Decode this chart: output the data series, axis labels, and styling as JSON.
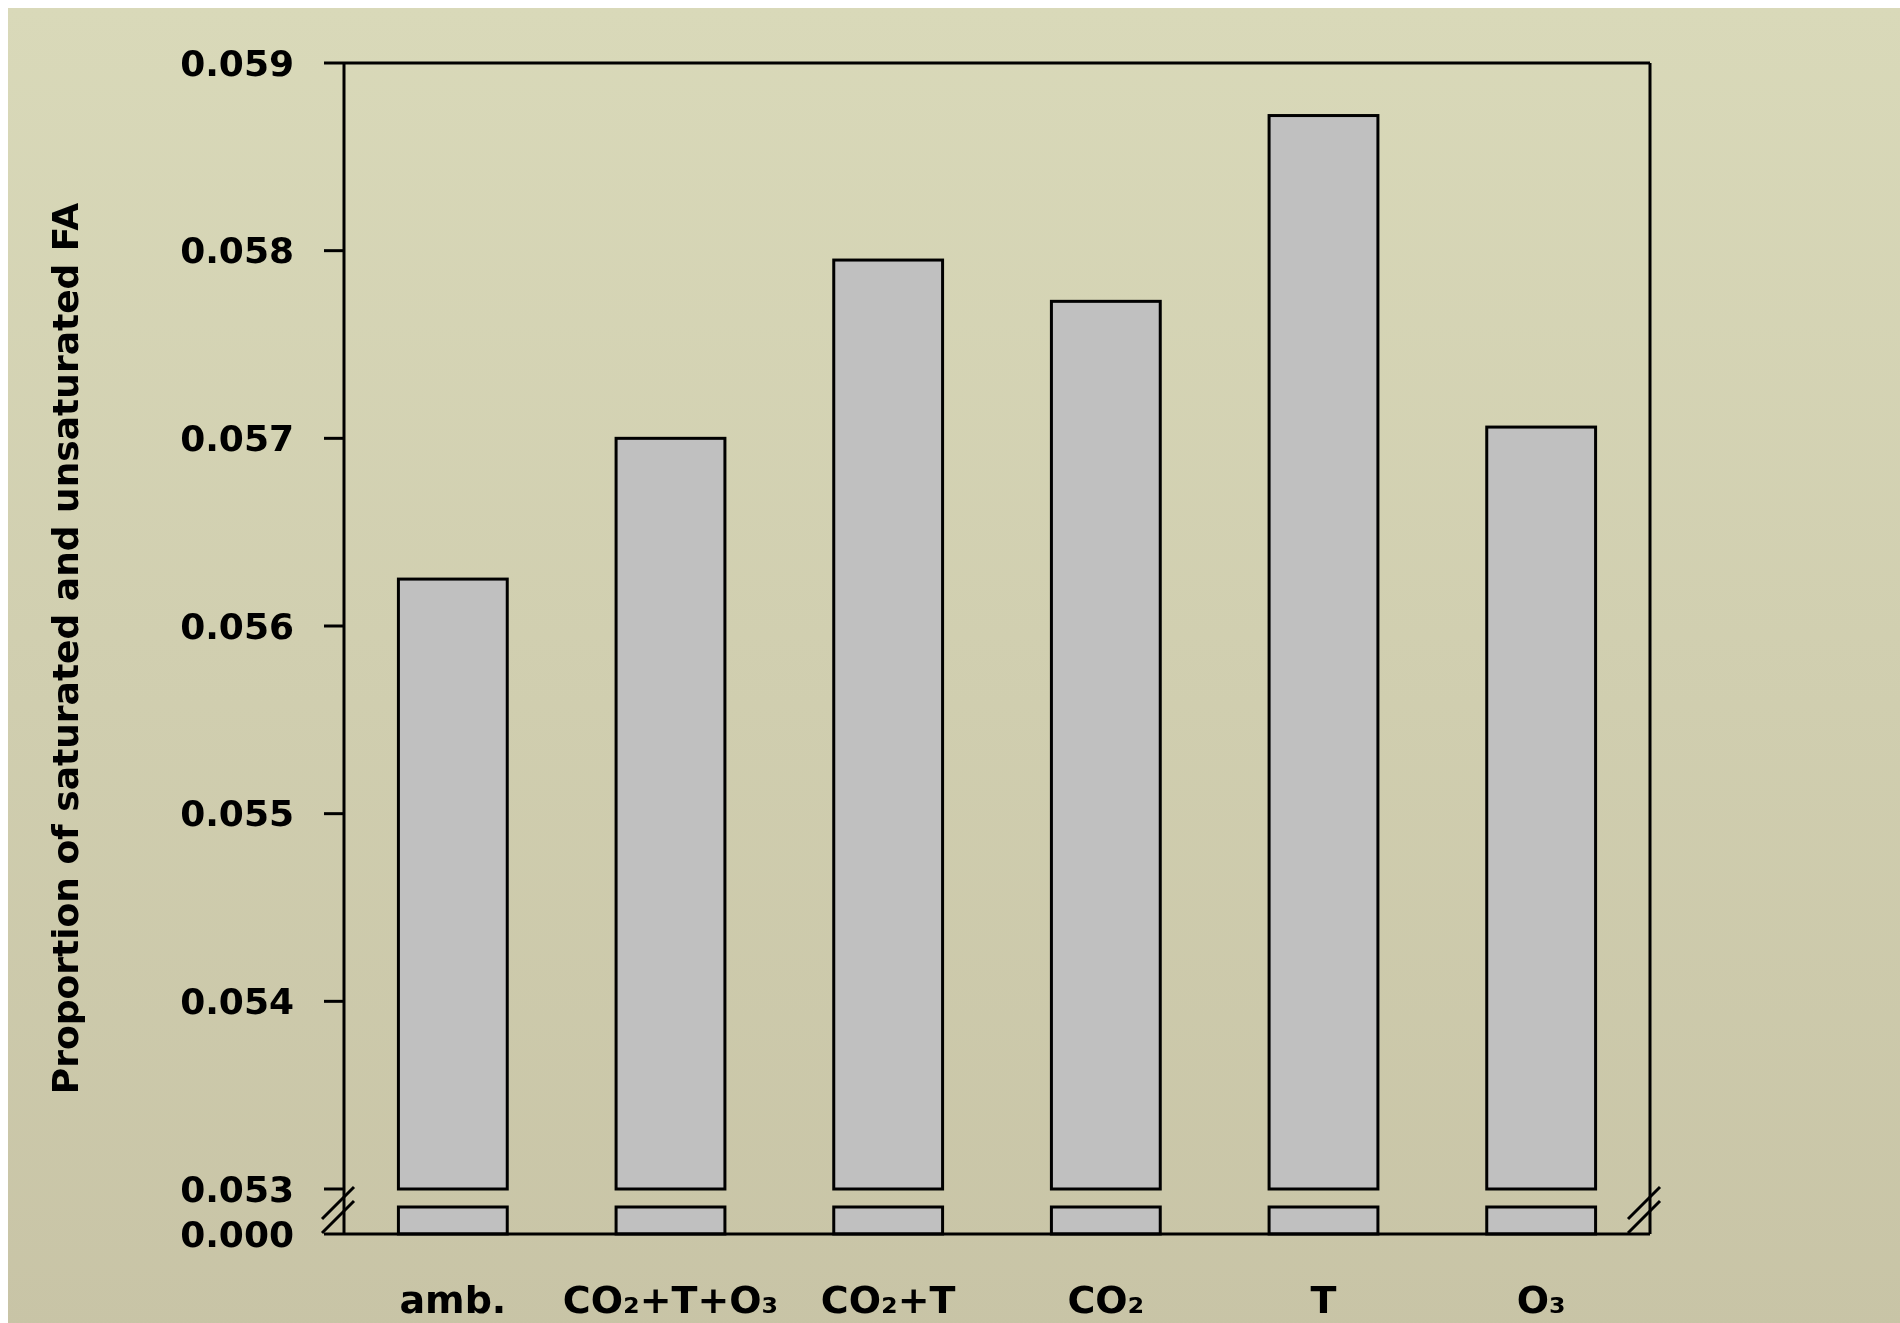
{
  "chart_data": {
    "type": "bar",
    "ylabel": "Proportion of saturated and unsaturated FA",
    "categories": [
      "amb.",
      "CO₂+T+O₃",
      "CO₂+T",
      "CO₂",
      "T",
      "O₃"
    ],
    "values": [
      0.05625,
      0.057,
      0.05795,
      0.05773,
      0.05872,
      0.05706
    ],
    "color": "#c0c0c0",
    "ylim": [
      0.053,
      0.059
    ],
    "yticks": [
      0.053,
      0.054,
      0.055,
      0.056,
      0.057,
      0.058,
      0.059
    ],
    "annotations": [
      "0.000"
    ],
    "grid": false
  }
}
